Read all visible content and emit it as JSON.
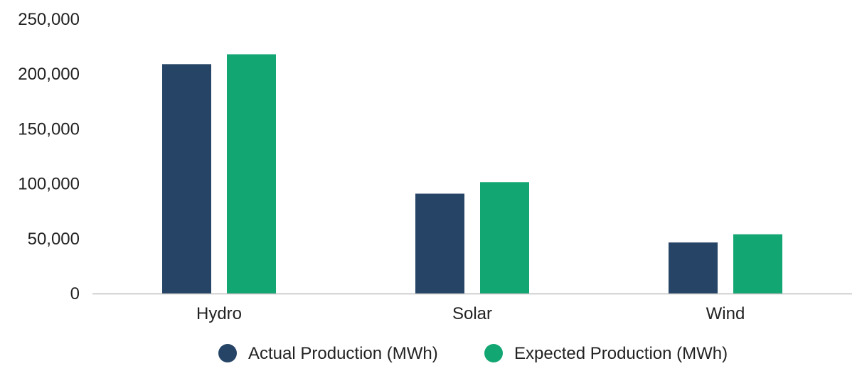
{
  "chart_data": {
    "type": "bar",
    "title": "",
    "xlabel": "",
    "ylabel": "",
    "categories": [
      "Hydro",
      "Solar",
      "Wind"
    ],
    "series": [
      {
        "name": "Actual Production (MWh)",
        "color": "#264466",
        "values": [
          209000,
          91000,
          46500
        ]
      },
      {
        "name": "Expected Production (MWh)",
        "color": "#12a672",
        "values": [
          218000,
          101500,
          54000
        ]
      }
    ],
    "ylim": [
      0,
      250000
    ],
    "yticks": [
      0,
      50000,
      100000,
      150000,
      200000,
      250000
    ],
    "ytick_labels": [
      "0",
      "50,000",
      "100,000",
      "150,000",
      "200,000",
      "250,000"
    ],
    "grid": false,
    "legend_position": "bottom-center",
    "axis_color": "#bfbfbf"
  }
}
